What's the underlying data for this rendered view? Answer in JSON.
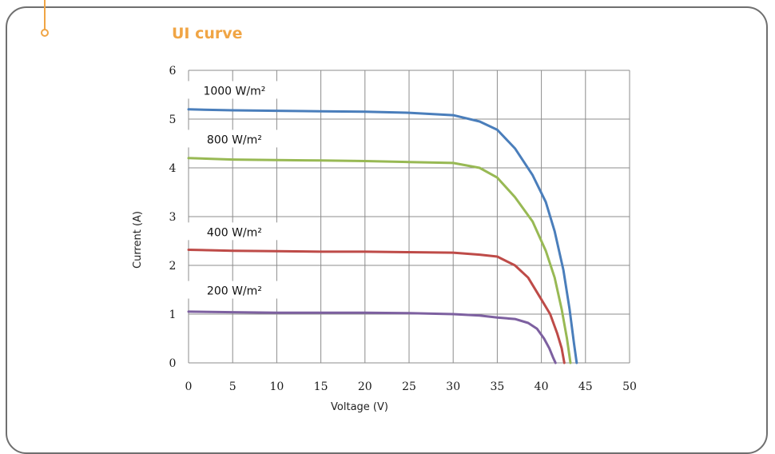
{
  "header": {
    "title": "UI curve"
  },
  "chart_data": {
    "type": "line",
    "title": "",
    "xlabel": "Voltage (V)",
    "ylabel": "Current (A)",
    "xlim": [
      0,
      50
    ],
    "ylim": [
      0,
      6
    ],
    "x_ticks": [
      0,
      5,
      10,
      15,
      20,
      25,
      30,
      35,
      40,
      45,
      50
    ],
    "y_ticks": [
      0,
      1,
      2,
      3,
      4,
      5,
      6
    ],
    "grid": true,
    "legend": "inline labels",
    "series": [
      {
        "name": "1000 W/m²",
        "color": "#4a7ebb",
        "points": [
          [
            0,
            5.2
          ],
          [
            5,
            5.18
          ],
          [
            10,
            5.17
          ],
          [
            15,
            5.16
          ],
          [
            20,
            5.15
          ],
          [
            25,
            5.13
          ],
          [
            30,
            5.08
          ],
          [
            33,
            4.95
          ],
          [
            35,
            4.78
          ],
          [
            37,
            4.4
          ],
          [
            39,
            3.85
          ],
          [
            40.5,
            3.3
          ],
          [
            41.5,
            2.7
          ],
          [
            42.5,
            1.9
          ],
          [
            43.2,
            1.1
          ],
          [
            43.7,
            0.4
          ],
          [
            44,
            0
          ]
        ]
      },
      {
        "name": "800 W/m²",
        "color": "#98b954",
        "points": [
          [
            0,
            4.2
          ],
          [
            5,
            4.17
          ],
          [
            10,
            4.16
          ],
          [
            15,
            4.15
          ],
          [
            20,
            4.14
          ],
          [
            25,
            4.12
          ],
          [
            30,
            4.1
          ],
          [
            33,
            4.0
          ],
          [
            35,
            3.8
          ],
          [
            37,
            3.4
          ],
          [
            39,
            2.9
          ],
          [
            40.5,
            2.3
          ],
          [
            41.5,
            1.75
          ],
          [
            42.3,
            1.1
          ],
          [
            42.9,
            0.5
          ],
          [
            43.3,
            0
          ]
        ]
      },
      {
        "name": "400 W/m²",
        "color": "#be4b48",
        "points": [
          [
            0,
            2.32
          ],
          [
            5,
            2.3
          ],
          [
            10,
            2.29
          ],
          [
            15,
            2.28
          ],
          [
            20,
            2.28
          ],
          [
            25,
            2.27
          ],
          [
            30,
            2.26
          ],
          [
            33,
            2.22
          ],
          [
            35,
            2.18
          ],
          [
            37,
            2.0
          ],
          [
            38.5,
            1.75
          ],
          [
            40,
            1.3
          ],
          [
            41,
            1.0
          ],
          [
            41.8,
            0.6
          ],
          [
            42.3,
            0.3
          ],
          [
            42.6,
            0
          ]
        ]
      },
      {
        "name": "200 W/m²",
        "color": "#7d60a0",
        "points": [
          [
            0,
            1.05
          ],
          [
            5,
            1.04
          ],
          [
            10,
            1.03
          ],
          [
            15,
            1.03
          ],
          [
            20,
            1.03
          ],
          [
            25,
            1.02
          ],
          [
            30,
            1.0
          ],
          [
            33,
            0.97
          ],
          [
            35,
            0.93
          ],
          [
            37,
            0.9
          ],
          [
            38.5,
            0.82
          ],
          [
            39.5,
            0.7
          ],
          [
            40.3,
            0.5
          ],
          [
            40.9,
            0.3
          ],
          [
            41.3,
            0.12
          ],
          [
            41.6,
            0
          ]
        ]
      }
    ]
  }
}
